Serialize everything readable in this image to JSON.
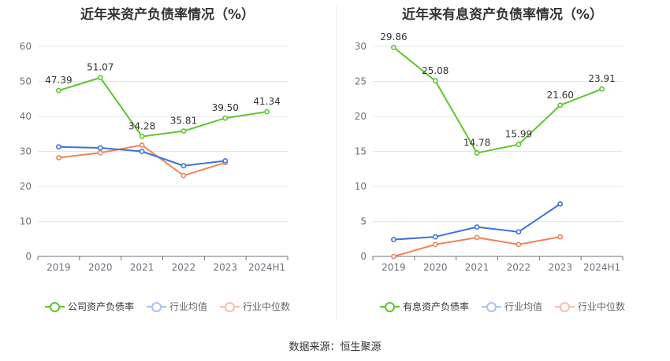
{
  "source_text": "数据来源：恒生聚源",
  "chart_data": [
    {
      "type": "line",
      "title": "近年来资产负债率情况（%）",
      "categories": [
        "2019",
        "2020",
        "2021",
        "2022",
        "2023",
        "2024H1"
      ],
      "ylim": [
        0,
        60
      ],
      "yticks": [
        0,
        10,
        20,
        30,
        40,
        50,
        60
      ],
      "grid": true,
      "legend_position": "bottom",
      "series": [
        {
          "name": "公司资产负债率",
          "color": "#5fc52f",
          "values": [
            47.39,
            51.07,
            34.28,
            35.81,
            39.5,
            41.34
          ],
          "labels": [
            "47.39",
            "51.07",
            "34.28",
            "35.81",
            "39.50",
            "41.34"
          ]
        },
        {
          "name": "行业均值",
          "color": "#3e72d8",
          "values": [
            31.3,
            31.0,
            30.0,
            25.9,
            27.3,
            null
          ]
        },
        {
          "name": "行业中位数",
          "color": "#ef8457",
          "values": [
            28.2,
            29.6,
            31.8,
            23.1,
            26.8,
            null
          ]
        }
      ]
    },
    {
      "type": "line",
      "title": "近年来有息资产负债率情况（%）",
      "categories": [
        "2019",
        "2020",
        "2021",
        "2022",
        "2023",
        "2024H1"
      ],
      "ylim": [
        0,
        30
      ],
      "yticks": [
        0,
        5,
        10,
        15,
        20,
        25,
        30
      ],
      "grid": true,
      "legend_position": "bottom",
      "series": [
        {
          "name": "有息资产负债率",
          "color": "#5fc52f",
          "values": [
            29.86,
            25.08,
            14.78,
            15.99,
            21.6,
            23.91
          ],
          "labels": [
            "29.86",
            "25.08",
            "14.78",
            "15.99",
            "21.60",
            "23.91"
          ]
        },
        {
          "name": "行业均值",
          "color": "#3e72d8",
          "values": [
            2.4,
            2.8,
            4.2,
            3.5,
            7.5,
            null
          ]
        },
        {
          "name": "行业中位数",
          "color": "#ef8457",
          "values": [
            0.0,
            1.7,
            2.7,
            1.7,
            2.8,
            null
          ]
        }
      ]
    }
  ]
}
